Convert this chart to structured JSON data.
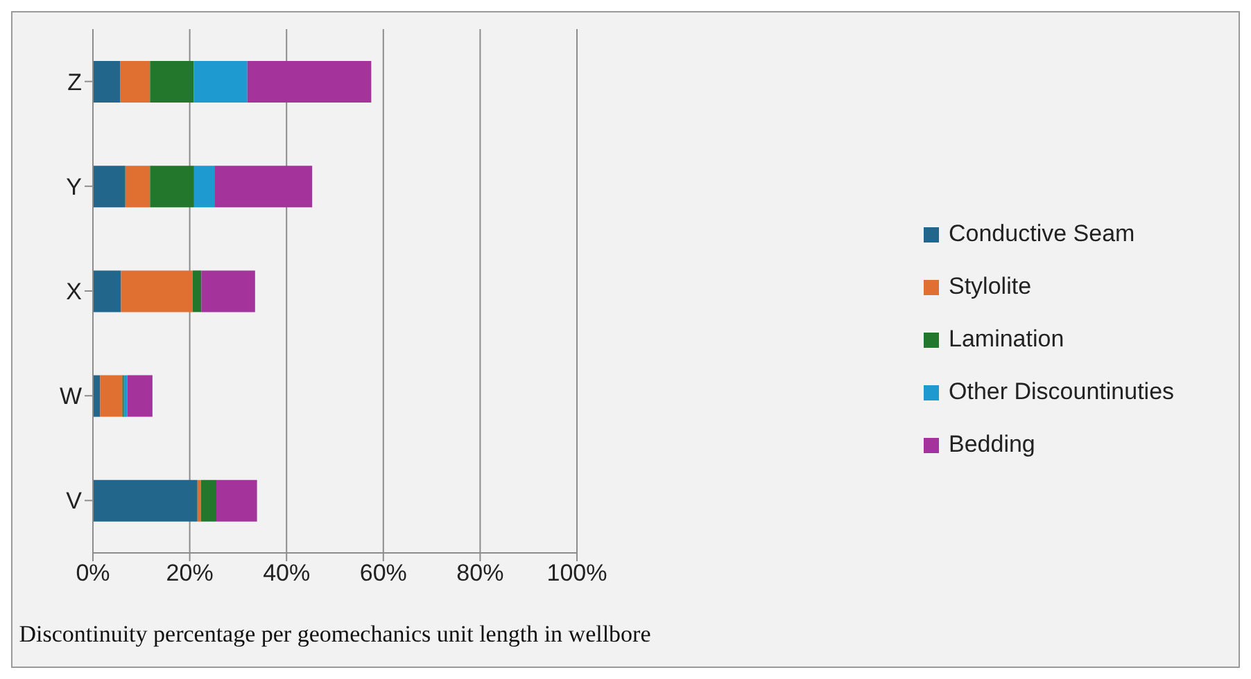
{
  "chart_data": {
    "type": "bar",
    "orientation": "horizontal",
    "stacked": true,
    "xlabel": "Discontinuity percentage per geomechanics unit length in wellbore",
    "categories": [
      "Z",
      "Y",
      "X",
      "W",
      "V"
    ],
    "series": [
      {
        "name": "Conductive Seam",
        "color": "#23668c",
        "values": [
          5.6,
          6.7,
          5.8,
          1.5,
          21.6
        ]
      },
      {
        "name": "Stylolite",
        "color": "#e07032",
        "values": [
          6.2,
          5.1,
          14.8,
          4.6,
          0.7
        ]
      },
      {
        "name": "Lamination",
        "color": "#23772d",
        "values": [
          9.0,
          9.1,
          1.8,
          0.3,
          3.2
        ]
      },
      {
        "name": "Other Discountinuties",
        "color": "#1e9ad0",
        "values": [
          11.1,
          4.2,
          0,
          0.7,
          0
        ]
      },
      {
        "name": "Bedding",
        "color": "#a4339b",
        "values": [
          25.6,
          20.2,
          11.1,
          5.2,
          8.4
        ]
      }
    ],
    "xlim": [
      0,
      100
    ],
    "xticks": [
      {
        "value": 0,
        "label": "0%"
      },
      {
        "value": 20,
        "label": "20%"
      },
      {
        "value": 40,
        "label": "40%"
      },
      {
        "value": 60,
        "label": "60%"
      },
      {
        "value": 80,
        "label": "80%"
      },
      {
        "value": 100,
        "label": "100%"
      }
    ],
    "grid": "x",
    "legend": "right"
  }
}
